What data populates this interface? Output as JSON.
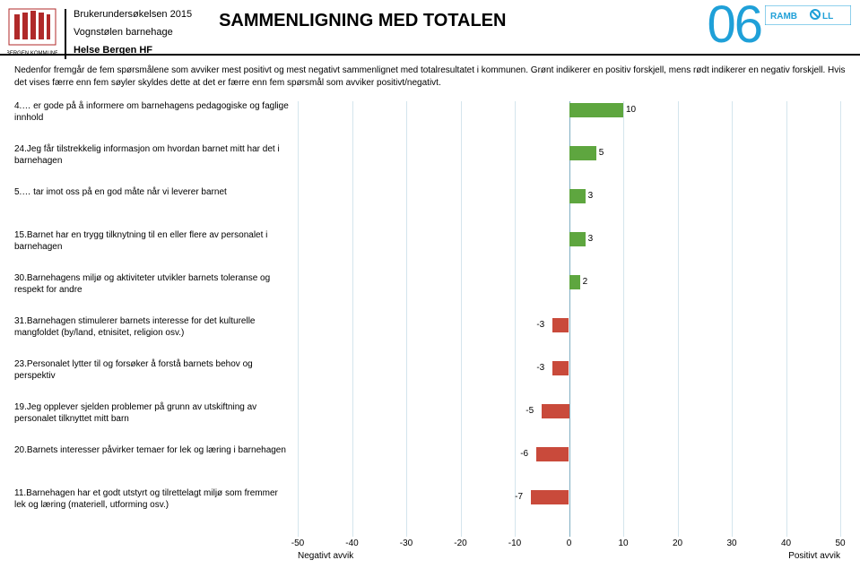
{
  "header": {
    "survey_line": "Brukerundersøkelsen 2015",
    "unit_line": "Vognstølen barnehage",
    "org_line": "Helse Bergen HF",
    "title": "SAMMENLIGNING MED TOTALEN",
    "page_number": "06",
    "ramboll_label": "RAMBOLL"
  },
  "intro": "Nedenfor fremgår de fem spørsmålene som avviker mest positivt og mest negativt sammenlignet med totalresultatet i kommunen. Grønt indikerer en positiv forskjell, mens rødt indikerer en negativ forskjell. Hvis det vises færre enn fem søyler skyldes dette at det er færre enn fem spørsmål som avviker positivt/negativt.",
  "chart": {
    "type": "bar",
    "xmin": -50,
    "xmax": 50,
    "tick_step": 10,
    "ticks": [
      -50,
      -40,
      -30,
      -20,
      -10,
      0,
      10,
      20,
      30,
      40,
      50
    ],
    "axis_label_left": "Negativt avvik",
    "axis_label_right": "Positivt avvik",
    "grid_color": "#d4e5ed",
    "zero_line_color": "#7faec2",
    "positive_color": "#5ea63f",
    "negative_color": "#c94a3b",
    "background_color": "#ffffff",
    "label_fontsize": 10,
    "rows": [
      {
        "label": "4.… er gode på å informere om barnehagens pedagogiske og faglige innhold",
        "value": 10
      },
      {
        "label": "24.Jeg får tilstrekkelig informasjon om hvordan barnet mitt har det i barnehagen",
        "value": 5
      },
      {
        "label": "5.… tar imot oss på en god måte når vi leverer barnet",
        "value": 3
      },
      {
        "label": "15.Barnet har en trygg tilknytning til en eller flere av personalet i barnehagen",
        "value": 3
      },
      {
        "label": "30.Barnehagens miljø og aktiviteter utvikler barnets toleranse og respekt for andre",
        "value": 2
      },
      {
        "label": "31.Barnehagen stimulerer barnets interesse for det kulturelle mangfoldet (by/land, etnisitet, religion osv.)",
        "value": -3
      },
      {
        "label": "23.Personalet lytter til og forsøker å forstå barnets behov og perspektiv",
        "value": -3
      },
      {
        "label": "19.Jeg opplever sjelden problemer på grunn av utskiftning av personalet tilknyttet mitt barn",
        "value": -5
      },
      {
        "label": "20.Barnets interesser påvirker temaer for lek og læring i barnehagen",
        "value": -6
      },
      {
        "label": "11.Barnehagen har et godt utstyrt og tilrettelagt miljø som fremmer lek og læring (materiell, utforming osv.)",
        "value": -7
      }
    ]
  }
}
